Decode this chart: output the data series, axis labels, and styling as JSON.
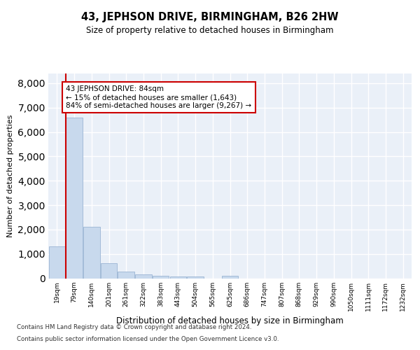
{
  "title": "43, JEPHSON DRIVE, BIRMINGHAM, B26 2HW",
  "subtitle": "Size of property relative to detached houses in Birmingham",
  "xlabel": "Distribution of detached houses by size in Birmingham",
  "ylabel": "Number of detached properties",
  "footnote1": "Contains HM Land Registry data © Crown copyright and database right 2024.",
  "footnote2": "Contains public sector information licensed under the Open Government Licence v3.0.",
  "annotation_title": "43 JEPHSON DRIVE: 84sqm",
  "annotation_line2": "← 15% of detached houses are smaller (1,643)",
  "annotation_line3": "84% of semi-detached houses are larger (9,267) →",
  "bar_color": "#c8d9ed",
  "bar_edge_color": "#9ab5d4",
  "vline_color": "#cc0000",
  "annotation_box_color": "#ffffff",
  "annotation_box_edge": "#cc0000",
  "bg_color": "#eaf0f8",
  "grid_color": "#ffffff",
  "categories": [
    "19sqm",
    "79sqm",
    "140sqm",
    "201sqm",
    "261sqm",
    "322sqm",
    "383sqm",
    "443sqm",
    "504sqm",
    "565sqm",
    "625sqm",
    "686sqm",
    "747sqm",
    "807sqm",
    "868sqm",
    "929sqm",
    "990sqm",
    "1050sqm",
    "1111sqm",
    "1172sqm",
    "1232sqm"
  ],
  "values": [
    1300,
    6600,
    2100,
    620,
    280,
    150,
    90,
    60,
    60,
    0,
    90,
    0,
    0,
    0,
    0,
    0,
    0,
    0,
    0,
    0,
    0
  ],
  "ylim": [
    0,
    8400
  ],
  "yticks": [
    0,
    1000,
    2000,
    3000,
    4000,
    5000,
    6000,
    7000,
    8000
  ],
  "vline_x": 0.5
}
